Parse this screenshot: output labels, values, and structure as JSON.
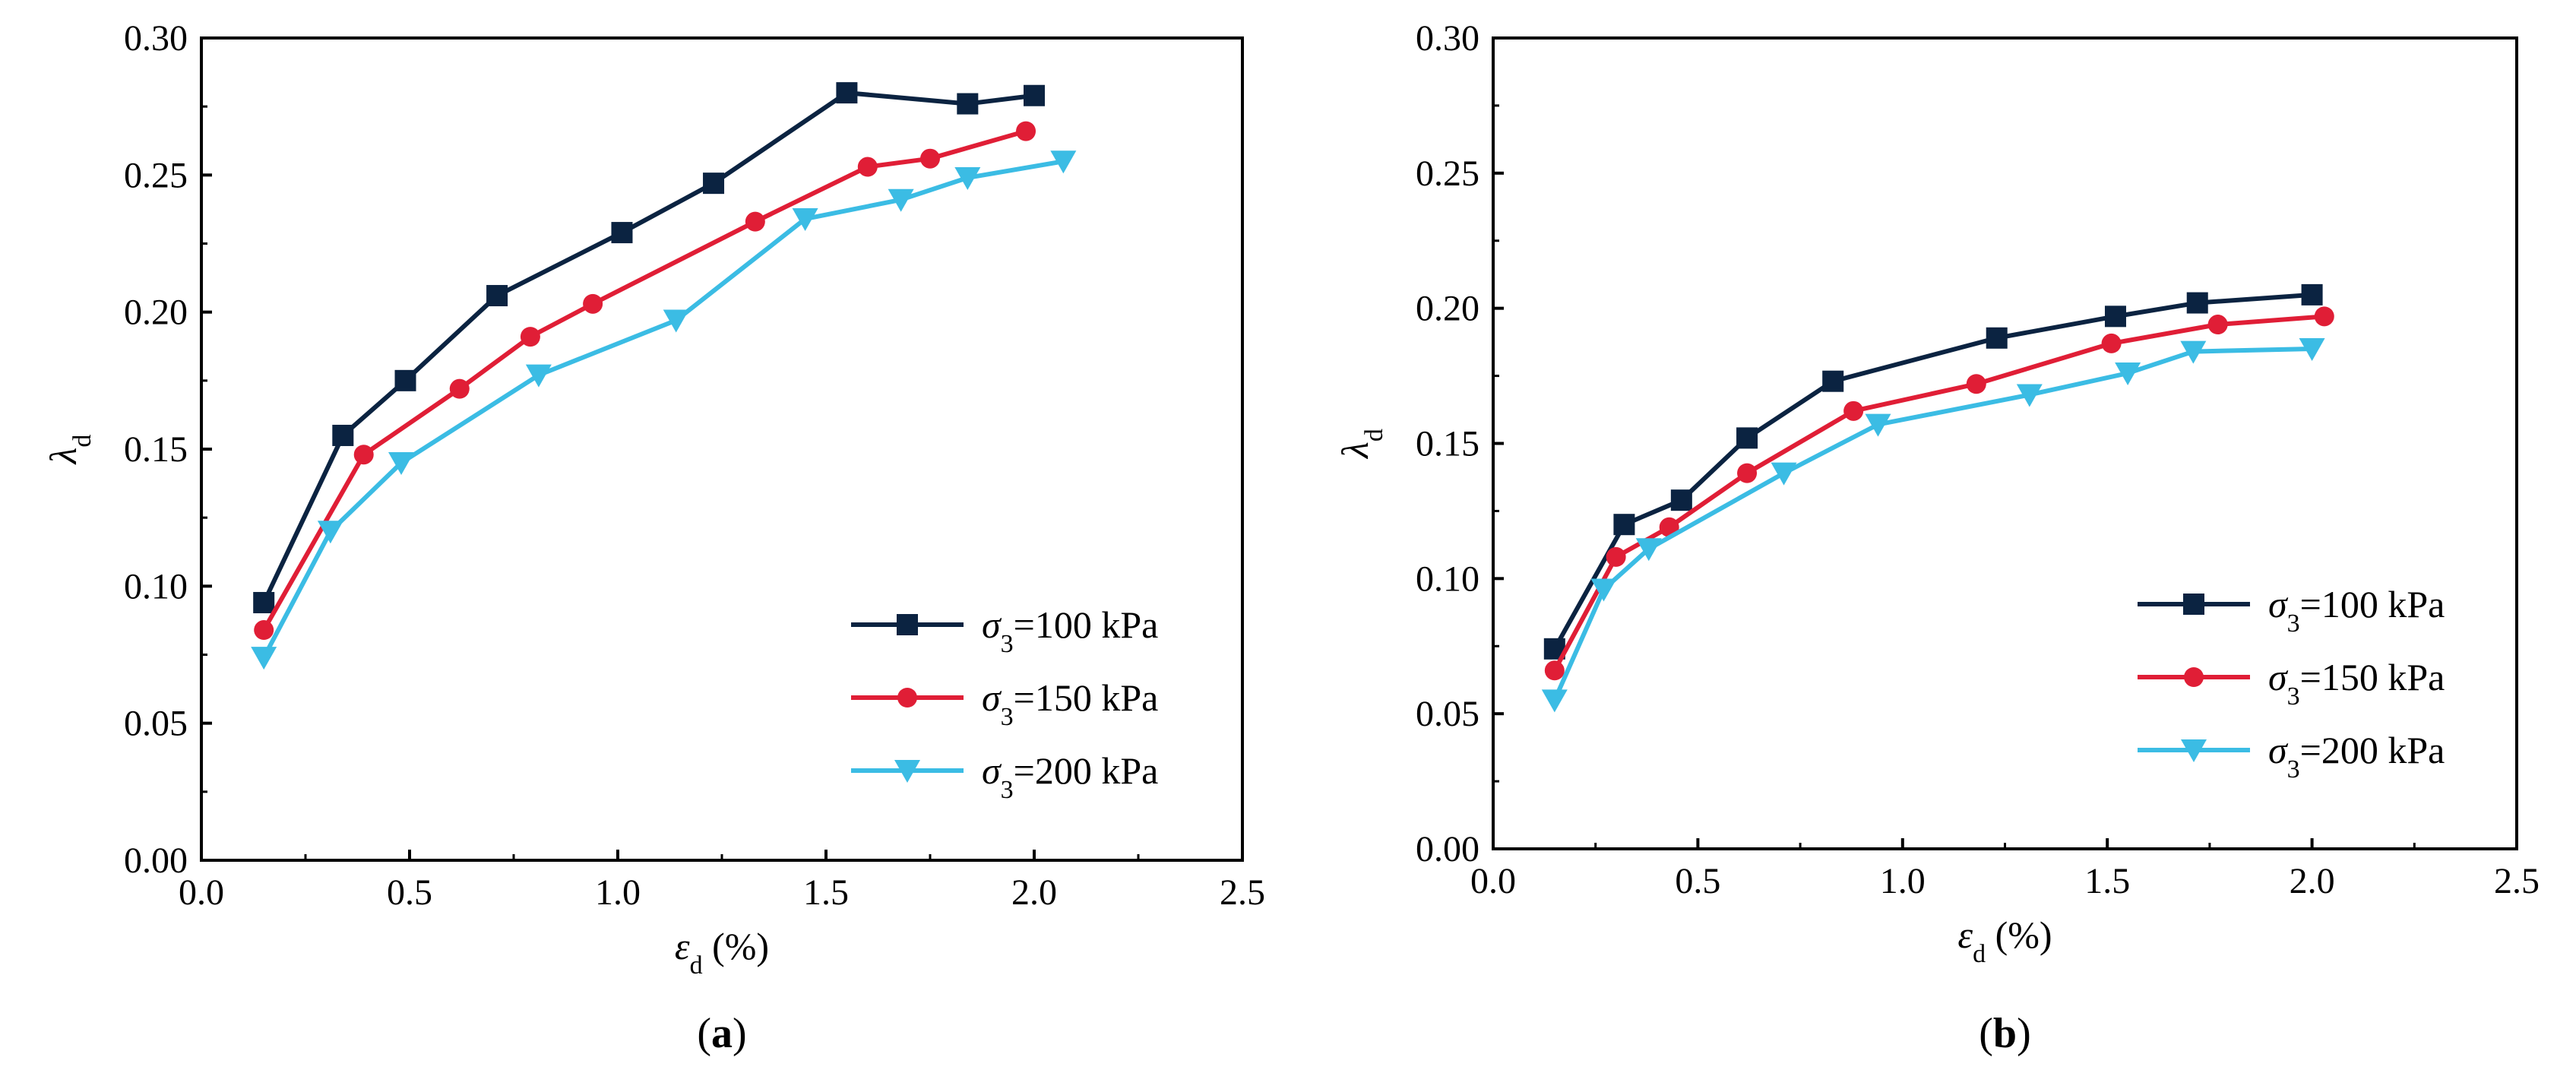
{
  "chart_data": [
    {
      "type": "line",
      "panel_label": "a",
      "xlabel": {
        "symbol": "ε",
        "sub": "d",
        "unit": " (%)"
      },
      "ylabel": {
        "symbol": "λ",
        "sub": "d"
      },
      "xlim": [
        0.0,
        2.5
      ],
      "ylim": [
        0.0,
        0.3
      ],
      "xticks": [
        "0.0",
        "0.5",
        "1.0",
        "1.5",
        "2.0",
        "2.5"
      ],
      "yticks": [
        "0.00",
        "0.05",
        "0.10",
        "0.15",
        "0.20",
        "0.25",
        "0.30"
      ],
      "grid": false,
      "legend_position": "bottom-right",
      "series": [
        {
          "name": "σ3=100 kPa",
          "label_symbol": "σ",
          "label_sub": "3",
          "label_rest": "=100 kPa",
          "color": "#0b2341",
          "marker": "square",
          "x": [
            0.15,
            0.34,
            0.49,
            0.71,
            1.01,
            1.23,
            1.55,
            1.84,
            2.0
          ],
          "y": [
            0.094,
            0.155,
            0.175,
            0.206,
            0.229,
            0.247,
            0.28,
            0.276,
            0.279
          ]
        },
        {
          "name": "σ3=150 kPa",
          "label_symbol": "σ",
          "label_sub": "3",
          "label_rest": "=150 kPa",
          "color": "#e01e36",
          "marker": "circle",
          "x": [
            0.15,
            0.39,
            0.62,
            0.79,
            0.94,
            1.33,
            1.6,
            1.75,
            1.98
          ],
          "y": [
            0.084,
            0.148,
            0.172,
            0.191,
            0.203,
            0.233,
            0.253,
            0.256,
            0.266
          ]
        },
        {
          "name": "σ3=200 kPa",
          "label_symbol": "σ",
          "label_sub": "3",
          "label_rest": "=200 kPa",
          "color": "#3bbce4",
          "marker": "triangle-down",
          "x": [
            0.15,
            0.31,
            0.48,
            0.81,
            1.14,
            1.45,
            1.68,
            1.84,
            2.07
          ],
          "y": [
            0.074,
            0.12,
            0.145,
            0.177,
            0.197,
            0.234,
            0.241,
            0.249,
            0.255
          ]
        }
      ]
    },
    {
      "type": "line",
      "panel_label": "b",
      "xlabel": {
        "symbol": "ε",
        "sub": "d",
        "unit": " (%)"
      },
      "ylabel": {
        "symbol": "λ",
        "sub": "d"
      },
      "xlim": [
        0.0,
        2.5
      ],
      "ylim": [
        0.0,
        0.3
      ],
      "xticks": [
        "0.0",
        "0.5",
        "1.0",
        "1.5",
        "2.0",
        "2.5"
      ],
      "yticks": [
        "0.00",
        "0.05",
        "0.10",
        "0.15",
        "0.20",
        "0.25",
        "0.30"
      ],
      "grid": false,
      "legend_position": "bottom-right",
      "series": [
        {
          "name": "σ3=100 kPa",
          "label_symbol": "σ",
          "label_sub": "3",
          "label_rest": "=100 kPa",
          "color": "#0b2341",
          "marker": "square",
          "x": [
            0.15,
            0.32,
            0.46,
            0.62,
            0.83,
            1.23,
            1.52,
            1.72,
            2.0
          ],
          "y": [
            0.074,
            0.12,
            0.129,
            0.152,
            0.173,
            0.189,
            0.197,
            0.202,
            0.205
          ]
        },
        {
          "name": "σ3=150 kPa",
          "label_symbol": "σ",
          "label_sub": "3",
          "label_rest": "=150 kPa",
          "color": "#e01e36",
          "marker": "circle",
          "x": [
            0.15,
            0.3,
            0.43,
            0.62,
            0.88,
            1.18,
            1.51,
            1.77,
            2.03
          ],
          "y": [
            0.066,
            0.108,
            0.119,
            0.139,
            0.162,
            0.172,
            0.187,
            0.194,
            0.197
          ]
        },
        {
          "name": "σ3=200 kPa",
          "label_symbol": "σ",
          "label_sub": "3",
          "label_rest": "=200 kPa",
          "color": "#3bbce4",
          "marker": "triangle-down",
          "x": [
            0.15,
            0.27,
            0.38,
            0.71,
            0.94,
            1.31,
            1.55,
            1.71,
            2.0
          ],
          "y": [
            0.055,
            0.096,
            0.111,
            0.139,
            0.157,
            0.168,
            0.176,
            0.184,
            0.185
          ]
        }
      ]
    }
  ]
}
